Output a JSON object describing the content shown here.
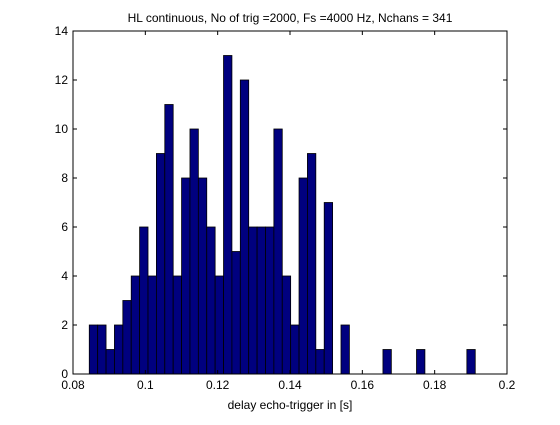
{
  "chart_data": {
    "type": "bar",
    "title": "HL continuous, No of trig =2000, Fs =4000 Hz, Nchans = 341",
    "xlabel": "delay echo-trigger in [s]",
    "ylabel": "",
    "xlim": [
      0.08,
      0.2
    ],
    "ylim": [
      0,
      14
    ],
    "xticks": [
      "0.08",
      "0.1",
      "0.12",
      "0.14",
      "0.16",
      "0.18",
      "0.2"
    ],
    "xtick_values": [
      0.08,
      0.1,
      0.12,
      0.14,
      0.16,
      0.18,
      0.2
    ],
    "yticks": [
      "0",
      "2",
      "4",
      "6",
      "8",
      "10",
      "12",
      "14"
    ],
    "ytick_values": [
      0,
      2,
      4,
      6,
      8,
      10,
      12,
      14
    ],
    "bin_start": 0.0845,
    "bin_width": 0.00232,
    "bin_centers": [
      0.0857,
      0.088,
      0.0903,
      0.0926,
      0.0949,
      0.0973,
      0.0996,
      0.1019,
      0.1042,
      0.1065,
      0.1088,
      0.1112,
      0.1135,
      0.1158,
      0.1181,
      0.1204,
      0.1227,
      0.1251,
      0.1274,
      0.1297,
      0.132,
      0.1343,
      0.1366,
      0.139,
      0.1413,
      0.1436,
      0.1459,
      0.1482,
      0.1505,
      0.1529,
      0.1552,
      0.1575,
      0.1598,
      0.1621,
      0.1645,
      0.1668,
      0.1691,
      0.1714,
      0.1737,
      0.176,
      0.1784,
      0.1807,
      0.183,
      0.1853,
      0.1876,
      0.1899
    ],
    "values": [
      2,
      2,
      1,
      2,
      3,
      4,
      6,
      4,
      9,
      11,
      4,
      8,
      10,
      8,
      6,
      4,
      13,
      5,
      12,
      6,
      6,
      6,
      10,
      4,
      2,
      8,
      9,
      1,
      7,
      0,
      2,
      0,
      0,
      0,
      0,
      1,
      0,
      0,
      0,
      1,
      0,
      0,
      0,
      0,
      0,
      1
    ],
    "grid": false,
    "legend": "none",
    "bar_color": "#00007f",
    "edge_color": "#000000"
  }
}
